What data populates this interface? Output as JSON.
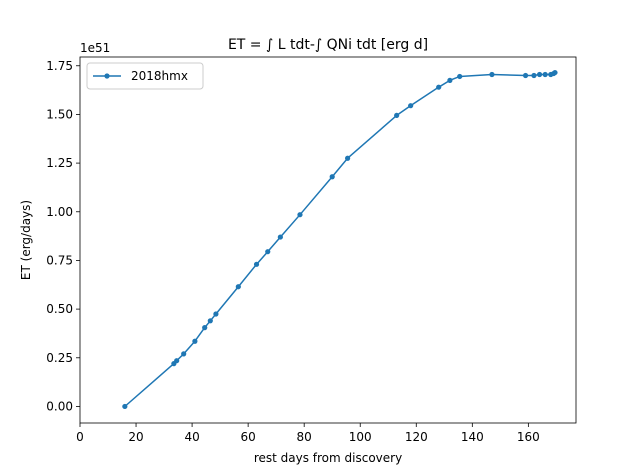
{
  "chart_data": {
    "type": "line",
    "title": "ET = ∫ L tdt-∫ QNi tdt [erg d]",
    "xlabel": "rest days from discovery",
    "ylabel": "ET (erg/days)",
    "y_offset_label": "1e51",
    "xlim": [
      0,
      177
    ],
    "ylim": [
      -0.085,
      1.795
    ],
    "y_scale_factor": 1e+51,
    "xticks": [
      0,
      20,
      40,
      60,
      80,
      100,
      120,
      140,
      160
    ],
    "xtick_labels": [
      "0",
      "20",
      "40",
      "60",
      "80",
      "100",
      "120",
      "140",
      "160"
    ],
    "yticks": [
      0.0,
      0.25,
      0.5,
      0.75,
      1.0,
      1.25,
      1.5,
      1.75
    ],
    "ytick_labels": [
      "0.00",
      "0.25",
      "0.50",
      "0.75",
      "1.00",
      "1.25",
      "1.50",
      "1.75"
    ],
    "grid": false,
    "legend_position": "upper-left",
    "series": [
      {
        "name": "2018hmx",
        "color": "#1f77b4",
        "marker": "circle",
        "x": [
          16,
          33.5,
          34.5,
          37,
          41,
          44.5,
          46.5,
          48.5,
          56.5,
          63,
          67,
          71.5,
          78.5,
          90,
          95.5,
          113,
          118,
          128,
          132,
          135.5,
          147,
          159,
          162,
          164,
          166,
          168,
          169,
          169.5
        ],
        "y": [
          0.0,
          0.22,
          0.235,
          0.27,
          0.335,
          0.405,
          0.44,
          0.475,
          0.615,
          0.73,
          0.795,
          0.87,
          0.985,
          1.18,
          1.275,
          1.495,
          1.545,
          1.64,
          1.675,
          1.695,
          1.705,
          1.7,
          1.7,
          1.705,
          1.705,
          1.705,
          1.71,
          1.715
        ]
      }
    ]
  }
}
